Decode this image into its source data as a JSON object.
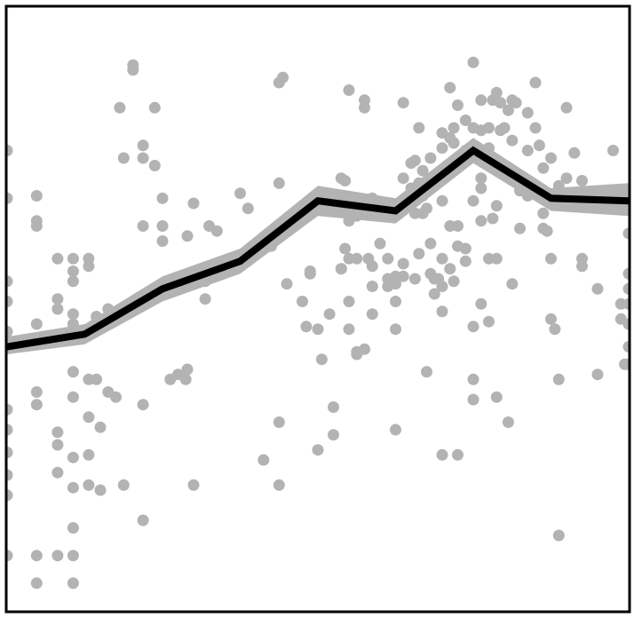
{
  "chart_data": {
    "type": "line",
    "title": "",
    "xlabel": "",
    "ylabel": "",
    "xlim": [
      0,
      8
    ],
    "ylim": [
      -1.1,
      1.3
    ],
    "grid": false,
    "colors": {
      "points": "#b3b3b3",
      "band": "#b3b3b3",
      "line": "#000000",
      "frame": "#000000"
    },
    "series": [
      {
        "kind": "trend",
        "x": [
          0,
          1,
          2,
          3,
          4,
          5,
          6,
          7,
          8
        ],
        "y": [
          -0.05,
          0.0,
          0.18,
          0.29,
          0.53,
          0.49,
          0.73,
          0.54,
          0.53
        ],
        "lower": [
          -0.08,
          -0.04,
          0.13,
          0.24,
          0.47,
          0.44,
          0.68,
          0.49,
          0.47
        ],
        "upper": [
          -0.01,
          0.04,
          0.23,
          0.34,
          0.59,
          0.54,
          0.78,
          0.58,
          0.6
        ]
      },
      {
        "kind": "scatter",
        "points": [
          [
            0.0,
            0.73
          ],
          [
            0.0,
            0.54
          ],
          [
            0.0,
            0.21
          ],
          [
            0.0,
            0.13
          ],
          [
            0.0,
            0.01
          ],
          [
            0.0,
            -0.04
          ],
          [
            0.0,
            -0.3
          ],
          [
            0.0,
            -0.38
          ],
          [
            0.0,
            -0.47
          ],
          [
            0.0,
            -0.56
          ],
          [
            0.0,
            -0.64
          ],
          [
            0.0,
            -0.88
          ],
          [
            0.38,
            0.55
          ],
          [
            0.38,
            0.45
          ],
          [
            0.38,
            0.43
          ],
          [
            0.38,
            0.04
          ],
          [
            0.38,
            -0.02
          ],
          [
            0.38,
            -0.23
          ],
          [
            0.38,
            -0.28
          ],
          [
            0.38,
            -0.88
          ],
          [
            0.38,
            -0.99
          ],
          [
            0.65,
            0.3
          ],
          [
            0.65,
            0.14
          ],
          [
            0.65,
            0.1
          ],
          [
            0.65,
            -0.39
          ],
          [
            0.65,
            -0.44
          ],
          [
            0.65,
            -0.55
          ],
          [
            0.65,
            -0.88
          ],
          [
            0.85,
            0.3
          ],
          [
            0.85,
            0.25
          ],
          [
            0.85,
            0.21
          ],
          [
            0.85,
            0.08
          ],
          [
            0.85,
            0.04
          ],
          [
            0.85,
            -0.15
          ],
          [
            0.85,
            -0.25
          ],
          [
            0.85,
            -0.49
          ],
          [
            0.85,
            -0.61
          ],
          [
            0.85,
            -0.77
          ],
          [
            0.85,
            -0.88
          ],
          [
            0.85,
            -0.99
          ],
          [
            1.05,
            0.3
          ],
          [
            1.05,
            0.27
          ],
          [
            1.05,
            -0.18
          ],
          [
            1.05,
            -0.33
          ],
          [
            1.05,
            -0.48
          ],
          [
            1.05,
            -0.6
          ],
          [
            1.15,
            0.07
          ],
          [
            1.15,
            -0.18
          ],
          [
            1.2,
            -0.37
          ],
          [
            1.2,
            -0.62
          ],
          [
            1.3,
            0.1
          ],
          [
            1.3,
            -0.23
          ],
          [
            1.4,
            -0.25
          ],
          [
            1.45,
            0.9
          ],
          [
            1.5,
            0.7
          ],
          [
            1.5,
            -0.6
          ],
          [
            1.62,
            1.07
          ],
          [
            1.62,
            1.05
          ],
          [
            1.75,
            0.75
          ],
          [
            1.75,
            0.7
          ],
          [
            1.75,
            0.43
          ],
          [
            1.75,
            -0.28
          ],
          [
            1.75,
            -0.74
          ],
          [
            1.9,
            0.9
          ],
          [
            1.9,
            0.67
          ],
          [
            2.0,
            0.54
          ],
          [
            2.0,
            0.43
          ],
          [
            2.0,
            0.37
          ],
          [
            2.1,
            0.2
          ],
          [
            2.1,
            -0.18
          ],
          [
            2.2,
            -0.16
          ],
          [
            2.3,
            -0.18
          ],
          [
            2.32,
            0.39
          ],
          [
            2.32,
            -0.14
          ],
          [
            2.4,
            0.52
          ],
          [
            2.4,
            -0.6
          ],
          [
            2.55,
            0.14
          ],
          [
            2.55,
            0.21
          ],
          [
            2.6,
            0.43
          ],
          [
            2.7,
            0.41
          ],
          [
            3.0,
            0.56
          ],
          [
            3.1,
            0.5
          ],
          [
            3.3,
            -0.5
          ],
          [
            3.4,
            0.35
          ],
          [
            3.5,
            1.0
          ],
          [
            3.5,
            0.6
          ],
          [
            3.5,
            -0.35
          ],
          [
            3.5,
            -0.6
          ],
          [
            3.55,
            1.02
          ],
          [
            3.6,
            0.2
          ],
          [
            3.8,
            0.13
          ],
          [
            3.85,
            0.03
          ],
          [
            3.9,
            0.25
          ],
          [
            3.9,
            0.24
          ],
          [
            3.95,
            0.53
          ],
          [
            4.0,
            0.02
          ],
          [
            4.0,
            -0.46
          ],
          [
            4.05,
            -0.1
          ],
          [
            4.15,
            0.08
          ],
          [
            4.2,
            -0.29
          ],
          [
            4.2,
            -0.4
          ],
          [
            4.3,
            0.26
          ],
          [
            4.3,
            0.62
          ],
          [
            4.3,
            0.26
          ],
          [
            4.35,
            0.34
          ],
          [
            4.35,
            0.61
          ],
          [
            4.4,
            0.3
          ],
          [
            4.4,
            0.13
          ],
          [
            4.4,
            0.97
          ],
          [
            4.4,
            0.45
          ],
          [
            4.4,
            0.02
          ],
          [
            4.5,
            0.47
          ],
          [
            4.5,
            0.3
          ],
          [
            4.5,
            -0.07
          ],
          [
            4.5,
            -0.08
          ],
          [
            4.6,
            0.93
          ],
          [
            4.6,
            0.9
          ],
          [
            4.6,
            -0.06
          ],
          [
            4.65,
            0.3
          ],
          [
            4.7,
            0.54
          ],
          [
            4.7,
            0.27
          ],
          [
            4.7,
            0.19
          ],
          [
            4.7,
            0.08
          ],
          [
            4.8,
            0.36
          ],
          [
            4.9,
            0.22
          ],
          [
            4.9,
            0.19
          ],
          [
            4.9,
            0.3
          ],
          [
            5.0,
            0.5
          ],
          [
            5.0,
            0.23
          ],
          [
            5.0,
            0.2
          ],
          [
            5.0,
            0.13
          ],
          [
            5.0,
            0.02
          ],
          [
            5.0,
            -0.38
          ],
          [
            5.1,
            0.92
          ],
          [
            5.1,
            0.62
          ],
          [
            5.1,
            0.23
          ],
          [
            5.1,
            0.28
          ],
          [
            5.2,
            0.58
          ],
          [
            5.2,
            0.68
          ],
          [
            5.25,
            0.69
          ],
          [
            5.25,
            0.48
          ],
          [
            5.25,
            0.22
          ],
          [
            5.3,
            0.82
          ],
          [
            5.3,
            0.6
          ],
          [
            5.3,
            0.32
          ],
          [
            5.35,
            0.65
          ],
          [
            5.35,
            0.55
          ],
          [
            5.35,
            0.48
          ],
          [
            5.4,
            0.5
          ],
          [
            5.4,
            -0.15
          ],
          [
            5.45,
            0.7
          ],
          [
            5.45,
            0.58
          ],
          [
            5.45,
            0.36
          ],
          [
            5.45,
            0.24
          ],
          [
            5.5,
            0.22
          ],
          [
            5.5,
            0.16
          ],
          [
            5.55,
            0.22
          ],
          [
            5.6,
            0.8
          ],
          [
            5.6,
            0.74
          ],
          [
            5.6,
            0.53
          ],
          [
            5.6,
            0.3
          ],
          [
            5.6,
            0.19
          ],
          [
            5.6,
            0.09
          ],
          [
            5.6,
            -0.48
          ],
          [
            5.7,
            0.98
          ],
          [
            5.7,
            0.78
          ],
          [
            5.7,
            0.43
          ],
          [
            5.7,
            0.26
          ],
          [
            5.75,
            0.82
          ],
          [
            5.75,
            0.76
          ],
          [
            5.75,
            0.21
          ],
          [
            5.8,
            0.91
          ],
          [
            5.8,
            0.69
          ],
          [
            5.8,
            0.43
          ],
          [
            5.8,
            0.35
          ],
          [
            5.8,
            -0.48
          ],
          [
            5.9,
            0.85
          ],
          [
            5.9,
            0.73
          ],
          [
            5.9,
            0.34
          ],
          [
            5.9,
            0.29
          ],
          [
            6.0,
            1.08
          ],
          [
            6.0,
            0.82
          ],
          [
            6.0,
            0.75
          ],
          [
            6.0,
            0.53
          ],
          [
            6.0,
            0.03
          ],
          [
            6.0,
            -0.18
          ],
          [
            6.0,
            -0.26
          ],
          [
            6.1,
            0.93
          ],
          [
            6.1,
            0.81
          ],
          [
            6.1,
            0.73
          ],
          [
            6.1,
            0.62
          ],
          [
            6.1,
            0.58
          ],
          [
            6.1,
            0.45
          ],
          [
            6.1,
            0.12
          ],
          [
            6.2,
            0.82
          ],
          [
            6.2,
            0.74
          ],
          [
            6.2,
            0.67
          ],
          [
            6.2,
            0.3
          ],
          [
            6.2,
            0.05
          ],
          [
            6.25,
            0.93
          ],
          [
            6.25,
            0.46
          ],
          [
            6.3,
            0.96
          ],
          [
            6.3,
            0.51
          ],
          [
            6.3,
            0.3
          ],
          [
            6.3,
            -0.25
          ],
          [
            6.35,
            0.92
          ],
          [
            6.35,
            0.81
          ],
          [
            6.4,
            0.82
          ],
          [
            6.4,
            0.66
          ],
          [
            6.45,
            0.89
          ],
          [
            6.45,
            -0.35
          ],
          [
            6.5,
            0.93
          ],
          [
            6.5,
            0.77
          ],
          [
            6.5,
            0.2
          ],
          [
            6.55,
            0.92
          ],
          [
            6.6,
            0.57
          ],
          [
            6.6,
            0.42
          ],
          [
            6.7,
            0.88
          ],
          [
            6.7,
            0.73
          ],
          [
            6.7,
            0.55
          ],
          [
            6.75,
            0.57
          ],
          [
            6.8,
            0.82
          ],
          [
            6.8,
            1.0
          ],
          [
            6.85,
            0.75
          ],
          [
            6.9,
            0.66
          ],
          [
            6.9,
            0.48
          ],
          [
            6.9,
            0.42
          ],
          [
            6.95,
            0.41
          ],
          [
            7.0,
            0.7
          ],
          [
            7.0,
            0.3
          ],
          [
            7.0,
            0.06
          ],
          [
            7.05,
            0.02
          ],
          [
            7.1,
            0.59
          ],
          [
            7.1,
            -0.18
          ],
          [
            7.1,
            -0.8
          ],
          [
            7.2,
            0.9
          ],
          [
            7.2,
            0.62
          ],
          [
            7.25,
            0.55
          ],
          [
            7.3,
            0.72
          ],
          [
            7.4,
            0.61
          ],
          [
            7.4,
            0.3
          ],
          [
            7.4,
            0.27
          ],
          [
            7.5,
            0.55
          ],
          [
            7.6,
            0.18
          ],
          [
            7.6,
            -0.16
          ],
          [
            7.8,
            0.73
          ],
          [
            7.9,
            0.12
          ],
          [
            7.9,
            0.06
          ],
          [
            7.95,
            -0.12
          ],
          [
            8.0,
            0.54
          ],
          [
            8.0,
            0.4
          ],
          [
            8.0,
            0.24
          ],
          [
            8.0,
            0.18
          ],
          [
            8.0,
            0.12
          ],
          [
            8.0,
            0.04
          ],
          [
            8.0,
            -0.05
          ],
          [
            8.0,
            -0.12
          ]
        ]
      }
    ]
  }
}
